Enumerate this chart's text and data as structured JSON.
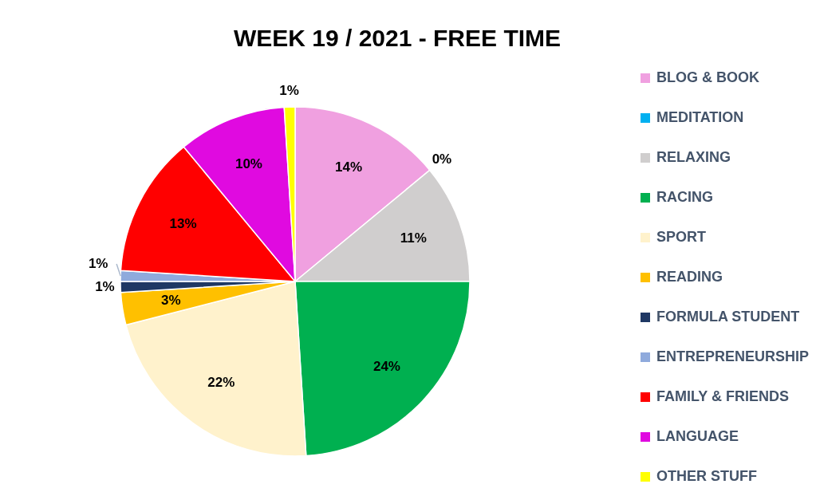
{
  "chart_data": {
    "type": "pie",
    "title": "WEEK 19 / 2021 - FREE TIME",
    "categories": [
      "BLOG & BOOK",
      "MEDITATION",
      "RELAXING",
      "RACING",
      "SPORT",
      "READING",
      "FORMULA STUDENT",
      "ENTREPRENEURSHIP",
      "FAMILY & FRIENDS",
      "LANGUAGE",
      "OTHER STUFF"
    ],
    "values": [
      14,
      0,
      11,
      24,
      22,
      3,
      1,
      1,
      13,
      10,
      1
    ],
    "colors": [
      "#f0a0e0",
      "#00b0f0",
      "#d0cece",
      "#00b050",
      "#fff2cc",
      "#ffc000",
      "#1f3864",
      "#8faadc",
      "#ff0000",
      "#e00ae0",
      "#ffff00"
    ],
    "value_labels": [
      "14%",
      "0%",
      "11%",
      "24%",
      "22%",
      "3%",
      "1%",
      "1%",
      "13%",
      "10%",
      "1%"
    ],
    "legend": "right"
  }
}
